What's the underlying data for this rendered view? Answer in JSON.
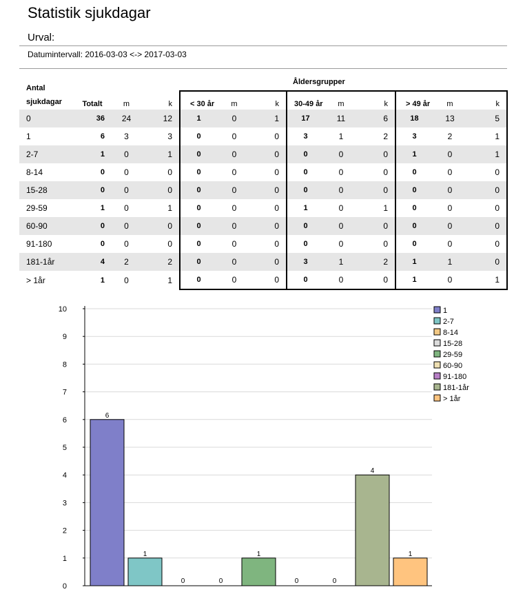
{
  "title": "Statistik sjukdagar",
  "urval_label": "Urval:",
  "date_interval": "Datumintervall: 2016-03-03 <-> 2017-03-03",
  "age_groups_title": "Åldersgrupper",
  "table": {
    "label_header_line1": "Antal",
    "label_header_line2": "sjukdagar",
    "headers": {
      "totalt": "Totalt",
      "m": "m",
      "k": "k",
      "g1": "< 30 år",
      "g1_m": "m",
      "g1_k": "k",
      "g2": "30-49 år",
      "g2_m": "m",
      "g2_k": "k",
      "g3": "> 49 år",
      "g3_m": "m",
      "g3_k": "k"
    },
    "rows": [
      {
        "label": "0",
        "totalt": "36",
        "m": "24",
        "k": "12",
        "g1": "1",
        "g1_m": "0",
        "g1_k": "1",
        "g2": "17",
        "g2_m": "11",
        "g2_k": "6",
        "g3": "18",
        "g3_m": "13",
        "g3_k": "5"
      },
      {
        "label": "1",
        "totalt": "6",
        "m": "3",
        "k": "3",
        "g1": "0",
        "g1_m": "0",
        "g1_k": "0",
        "g2": "3",
        "g2_m": "1",
        "g2_k": "2",
        "g3": "3",
        "g3_m": "2",
        "g3_k": "1"
      },
      {
        "label": "2-7",
        "totalt": "1",
        "m": "0",
        "k": "1",
        "g1": "0",
        "g1_m": "0",
        "g1_k": "0",
        "g2": "0",
        "g2_m": "0",
        "g2_k": "0",
        "g3": "1",
        "g3_m": "0",
        "g3_k": "1"
      },
      {
        "label": "8-14",
        "totalt": "0",
        "m": "0",
        "k": "0",
        "g1": "0",
        "g1_m": "0",
        "g1_k": "0",
        "g2": "0",
        "g2_m": "0",
        "g2_k": "0",
        "g3": "0",
        "g3_m": "0",
        "g3_k": "0"
      },
      {
        "label": "15-28",
        "totalt": "0",
        "m": "0",
        "k": "0",
        "g1": "0",
        "g1_m": "0",
        "g1_k": "0",
        "g2": "0",
        "g2_m": "0",
        "g2_k": "0",
        "g3": "0",
        "g3_m": "0",
        "g3_k": "0"
      },
      {
        "label": "29-59",
        "totalt": "1",
        "m": "0",
        "k": "1",
        "g1": "0",
        "g1_m": "0",
        "g1_k": "0",
        "g2": "1",
        "g2_m": "0",
        "g2_k": "1",
        "g3": "0",
        "g3_m": "0",
        "g3_k": "0"
      },
      {
        "label": "60-90",
        "totalt": "0",
        "m": "0",
        "k": "0",
        "g1": "0",
        "g1_m": "0",
        "g1_k": "0",
        "g2": "0",
        "g2_m": "0",
        "g2_k": "0",
        "g3": "0",
        "g3_m": "0",
        "g3_k": "0"
      },
      {
        "label": "91-180",
        "totalt": "0",
        "m": "0",
        "k": "0",
        "g1": "0",
        "g1_m": "0",
        "g1_k": "0",
        "g2": "0",
        "g2_m": "0",
        "g2_k": "0",
        "g3": "0",
        "g3_m": "0",
        "g3_k": "0"
      },
      {
        "label": "181-1år",
        "totalt": "4",
        "m": "2",
        "k": "2",
        "g1": "0",
        "g1_m": "0",
        "g1_k": "0",
        "g2": "3",
        "g2_m": "1",
        "g2_k": "2",
        "g3": "1",
        "g3_m": "1",
        "g3_k": "0"
      },
      {
        "label": "> 1år",
        "totalt": "1",
        "m": "0",
        "k": "1",
        "g1": "0",
        "g1_m": "0",
        "g1_k": "0",
        "g2": "0",
        "g2_m": "0",
        "g2_k": "0",
        "g3": "1",
        "g3_m": "0",
        "g3_k": "1"
      }
    ]
  },
  "chart_data": {
    "type": "bar",
    "categories": [
      "1",
      "2-7",
      "8-14",
      "15-28",
      "29-59",
      "60-90",
      "91-180",
      "181-1år",
      "> 1år"
    ],
    "values": [
      6,
      1,
      0,
      0,
      1,
      0,
      0,
      4,
      1
    ],
    "colors": [
      "#7f7fc9",
      "#7fc6c6",
      "#f2c884",
      "#dcdcdc",
      "#7fb57f",
      "#eedfb2",
      "#b77fc6",
      "#a8b58f",
      "#ffc47f"
    ],
    "ylim": [
      0,
      10
    ],
    "yticks": [
      0,
      1,
      2,
      3,
      4,
      5,
      6,
      7,
      8,
      9,
      10
    ],
    "grid": true,
    "legend": "top-right",
    "data_labels": true
  }
}
